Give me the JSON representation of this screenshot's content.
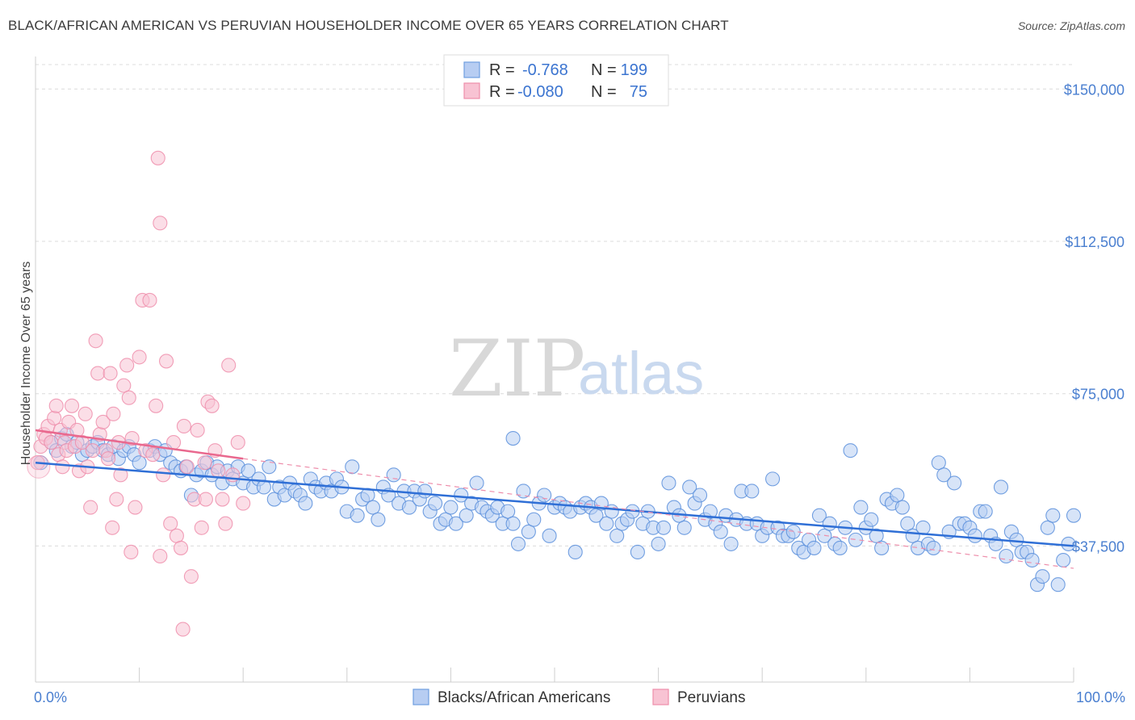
{
  "chart_data": {
    "type": "scatter",
    "title": "BLACK/AFRICAN AMERICAN VS PERUVIAN HOUSEHOLDER INCOME OVER 65 YEARS CORRELATION CHART",
    "source": "Source: ZipAtlas.com",
    "ylabel": "Householder Income Over 65 years",
    "xlim": [
      0,
      100
    ],
    "ylim": [
      4000,
      158000
    ],
    "y_ticks": [
      {
        "value": 150000,
        "label": "$150,000"
      },
      {
        "value": 112500,
        "label": "$112,500"
      },
      {
        "value": 75000,
        "label": "$75,000"
      },
      {
        "value": 37500,
        "label": "$37,500"
      }
    ],
    "x_tick_labels": {
      "left": "0.0%",
      "right": "100.0%"
    },
    "watermark": {
      "zip": "ZIP",
      "atlas": "atlas"
    },
    "legend_box": [
      {
        "r_label": "R =",
        "r": "-0.768",
        "n_label": "N =",
        "n": "199",
        "color": "#6f9ee0",
        "fill": "#b7cdf2"
      },
      {
        "r_label": "R =",
        "r": "-0.080",
        "n_label": "N =",
        "n": "75",
        "color": "#ee8eab",
        "fill": "#f8c3d3"
      }
    ],
    "series": [
      {
        "name": "Blacks/African Americans",
        "color": "#5b8fdc",
        "fill": "#b7cdf2",
        "trend": {
          "x": [
            0,
            100
          ],
          "y": [
            58000,
            37500
          ]
        },
        "points": [
          [
            0.5,
            58
          ],
          [
            1.5,
            63
          ],
          [
            2,
            61
          ],
          [
            2.5,
            64
          ],
          [
            3,
            65
          ],
          [
            3.5,
            62
          ],
          [
            4,
            63
          ],
          [
            4.5,
            60
          ],
          [
            5,
            61
          ],
          [
            5.5,
            62
          ],
          [
            6,
            63
          ],
          [
            6.5,
            61
          ],
          [
            7,
            60
          ],
          [
            7.5,
            62
          ],
          [
            8,
            59
          ],
          [
            8.5,
            61
          ],
          [
            9,
            62
          ],
          [
            9.5,
            60
          ],
          [
            10,
            58
          ],
          [
            11,
            61
          ],
          [
            11.5,
            62
          ],
          [
            12,
            60
          ],
          [
            12.5,
            61
          ],
          [
            13,
            58
          ],
          [
            13.5,
            57
          ],
          [
            14,
            56
          ],
          [
            14.5,
            57
          ],
          [
            15,
            50
          ],
          [
            15.5,
            55
          ],
          [
            16,
            56
          ],
          [
            16.5,
            58
          ],
          [
            17,
            55
          ],
          [
            17.5,
            57
          ],
          [
            18,
            53
          ],
          [
            18.5,
            56
          ],
          [
            19,
            54
          ],
          [
            19.5,
            57
          ],
          [
            20,
            53
          ],
          [
            20.5,
            56
          ],
          [
            21,
            52
          ],
          [
            21.5,
            54
          ],
          [
            22,
            52
          ],
          [
            22.5,
            57
          ],
          [
            23,
            49
          ],
          [
            23.5,
            52
          ],
          [
            24,
            50
          ],
          [
            24.5,
            53
          ],
          [
            25,
            51
          ],
          [
            25.5,
            50
          ],
          [
            26,
            48
          ],
          [
            26.5,
            54
          ],
          [
            27,
            52
          ],
          [
            27.5,
            51
          ],
          [
            28,
            53
          ],
          [
            28.5,
            51
          ],
          [
            29,
            54
          ],
          [
            29.5,
            52
          ],
          [
            30,
            46
          ],
          [
            30.5,
            57
          ],
          [
            31,
            45
          ],
          [
            31.5,
            49
          ],
          [
            32,
            50
          ],
          [
            32.5,
            47
          ],
          [
            33,
            44
          ],
          [
            33.5,
            52
          ],
          [
            34,
            50
          ],
          [
            34.5,
            55
          ],
          [
            35,
            48
          ],
          [
            35.5,
            51
          ],
          [
            36,
            47
          ],
          [
            36.5,
            51
          ],
          [
            37,
            49
          ],
          [
            37.5,
            51
          ],
          [
            38,
            46
          ],
          [
            38.5,
            48
          ],
          [
            39,
            43
          ],
          [
            39.5,
            44
          ],
          [
            40,
            47
          ],
          [
            40.5,
            43
          ],
          [
            41,
            50
          ],
          [
            41.5,
            45
          ],
          [
            42,
            48
          ],
          [
            42.5,
            53
          ],
          [
            43,
            47
          ],
          [
            43.5,
            46
          ],
          [
            44,
            45
          ],
          [
            44.5,
            47
          ],
          [
            45,
            43
          ],
          [
            45.5,
            46
          ],
          [
            46,
            43
          ],
          [
            46.5,
            38
          ],
          [
            47,
            51
          ],
          [
            47.5,
            41
          ],
          [
            48,
            44
          ],
          [
            48.5,
            48
          ],
          [
            49,
            50
          ],
          [
            49.5,
            40
          ],
          [
            50,
            47
          ],
          [
            50.5,
            48
          ],
          [
            51,
            47
          ],
          [
            51.5,
            46
          ],
          [
            52,
            36
          ],
          [
            52.5,
            47
          ],
          [
            53,
            48
          ],
          [
            53.5,
            47
          ],
          [
            54,
            45
          ],
          [
            54.5,
            48
          ],
          [
            55,
            43
          ],
          [
            55.5,
            46
          ],
          [
            56,
            40
          ],
          [
            56.5,
            43
          ],
          [
            57,
            44
          ],
          [
            57.5,
            46
          ],
          [
            58,
            36
          ],
          [
            58.5,
            43
          ],
          [
            59,
            46
          ],
          [
            59.5,
            42
          ],
          [
            60,
            38
          ],
          [
            60.5,
            42
          ],
          [
            61,
            53
          ],
          [
            61.5,
            47
          ],
          [
            62,
            45
          ],
          [
            62.5,
            42
          ],
          [
            63,
            52
          ],
          [
            63.5,
            48
          ],
          [
            64,
            50
          ],
          [
            64.5,
            44
          ],
          [
            65,
            46
          ],
          [
            65.5,
            43
          ],
          [
            66,
            41
          ],
          [
            66.5,
            45
          ],
          [
            67,
            38
          ],
          [
            67.5,
            44
          ],
          [
            68,
            51
          ],
          [
            68.5,
            43
          ],
          [
            69,
            51
          ],
          [
            69.5,
            43
          ],
          [
            70,
            40
          ],
          [
            70.5,
            42
          ],
          [
            71,
            54
          ],
          [
            71.5,
            42
          ],
          [
            72,
            40
          ],
          [
            72.5,
            40
          ],
          [
            73,
            41
          ],
          [
            73.5,
            37
          ],
          [
            74,
            36
          ],
          [
            74.5,
            39
          ],
          [
            75,
            37
          ],
          [
            75.5,
            45
          ],
          [
            76,
            40
          ],
          [
            76.5,
            43
          ],
          [
            77,
            38
          ],
          [
            77.5,
            37
          ],
          [
            78,
            42
          ],
          [
            78.5,
            61
          ],
          [
            79,
            39
          ],
          [
            79.5,
            47
          ],
          [
            80,
            42
          ],
          [
            80.5,
            44
          ],
          [
            81,
            40
          ],
          [
            81.5,
            37
          ],
          [
            82,
            49
          ],
          [
            82.5,
            48
          ],
          [
            83,
            50
          ],
          [
            83.5,
            47
          ],
          [
            84,
            43
          ],
          [
            84.5,
            40
          ],
          [
            85,
            37
          ],
          [
            85.5,
            42
          ],
          [
            86,
            38
          ],
          [
            86.5,
            37
          ],
          [
            87,
            58
          ],
          [
            87.5,
            55
          ],
          [
            88,
            41
          ],
          [
            88.5,
            53
          ],
          [
            89,
            43
          ],
          [
            89.5,
            43
          ],
          [
            90,
            42
          ],
          [
            90.5,
            40
          ],
          [
            91,
            46
          ],
          [
            91.5,
            46
          ],
          [
            92,
            40
          ],
          [
            92.5,
            38
          ],
          [
            93,
            52
          ],
          [
            93.5,
            35
          ],
          [
            94,
            41
          ],
          [
            94.5,
            39
          ],
          [
            95,
            36
          ],
          [
            95.5,
            36
          ],
          [
            96,
            34
          ],
          [
            96.5,
            28
          ],
          [
            97,
            30
          ],
          [
            97.5,
            42
          ],
          [
            98,
            45
          ],
          [
            98.5,
            28
          ],
          [
            99,
            34
          ],
          [
            99.5,
            38
          ],
          [
            100,
            45
          ],
          [
            46,
            64
          ]
        ]
      },
      {
        "name": "Peruvians",
        "color": "#ee8eab",
        "fill": "#f8c3d3",
        "trend": {
          "x": [
            0,
            20
          ],
          "y": [
            66000,
            59000
          ],
          "dash_to": [
            100,
            32000
          ]
        },
        "points": [
          [
            0.2,
            58
          ],
          [
            0.5,
            62
          ],
          [
            0.8,
            65
          ],
          [
            1,
            64
          ],
          [
            1.2,
            67
          ],
          [
            1.5,
            63
          ],
          [
            1.8,
            69
          ],
          [
            2,
            72
          ],
          [
            2.2,
            60
          ],
          [
            2.4,
            66
          ],
          [
            2.6,
            57
          ],
          [
            2.8,
            63
          ],
          [
            3,
            61
          ],
          [
            3.2,
            68
          ],
          [
            3.5,
            72
          ],
          [
            3.8,
            62
          ],
          [
            4,
            66
          ],
          [
            4.2,
            56
          ],
          [
            4.5,
            63
          ],
          [
            4.8,
            70
          ],
          [
            5,
            57
          ],
          [
            5.3,
            47
          ],
          [
            5.5,
            61
          ],
          [
            5.8,
            88
          ],
          [
            6,
            80
          ],
          [
            6.2,
            65
          ],
          [
            6.5,
            68
          ],
          [
            6.8,
            61
          ],
          [
            7,
            59
          ],
          [
            7.2,
            80
          ],
          [
            7.5,
            70
          ],
          [
            7.8,
            49
          ],
          [
            8,
            63
          ],
          [
            8.2,
            55
          ],
          [
            8.5,
            77
          ],
          [
            8.8,
            82
          ],
          [
            9,
            74
          ],
          [
            9.3,
            64
          ],
          [
            9.6,
            47
          ],
          [
            10,
            84
          ],
          [
            10.3,
            98
          ],
          [
            10.6,
            61
          ],
          [
            11,
            98
          ],
          [
            11.3,
            60
          ],
          [
            11.6,
            72
          ],
          [
            12,
            35
          ],
          [
            12.3,
            55
          ],
          [
            12.6,
            83
          ],
          [
            13,
            43
          ],
          [
            13.3,
            63
          ],
          [
            13.6,
            40
          ],
          [
            14,
            37
          ],
          [
            14.3,
            67
          ],
          [
            14.6,
            57
          ],
          [
            15,
            30
          ],
          [
            15.3,
            49
          ],
          [
            15.6,
            66
          ],
          [
            16,
            42
          ],
          [
            16.3,
            58
          ],
          [
            16.6,
            73
          ],
          [
            17,
            72
          ],
          [
            17.3,
            61
          ],
          [
            17.6,
            56
          ],
          [
            18,
            49
          ],
          [
            18.3,
            43
          ],
          [
            18.6,
            82
          ],
          [
            19,
            55
          ],
          [
            19.5,
            63
          ],
          [
            20,
            48
          ],
          [
            12,
            117
          ],
          [
            11.8,
            133
          ],
          [
            14.2,
            17
          ],
          [
            9.2,
            36
          ],
          [
            7.4,
            42
          ],
          [
            16.4,
            49
          ]
        ]
      }
    ]
  }
}
